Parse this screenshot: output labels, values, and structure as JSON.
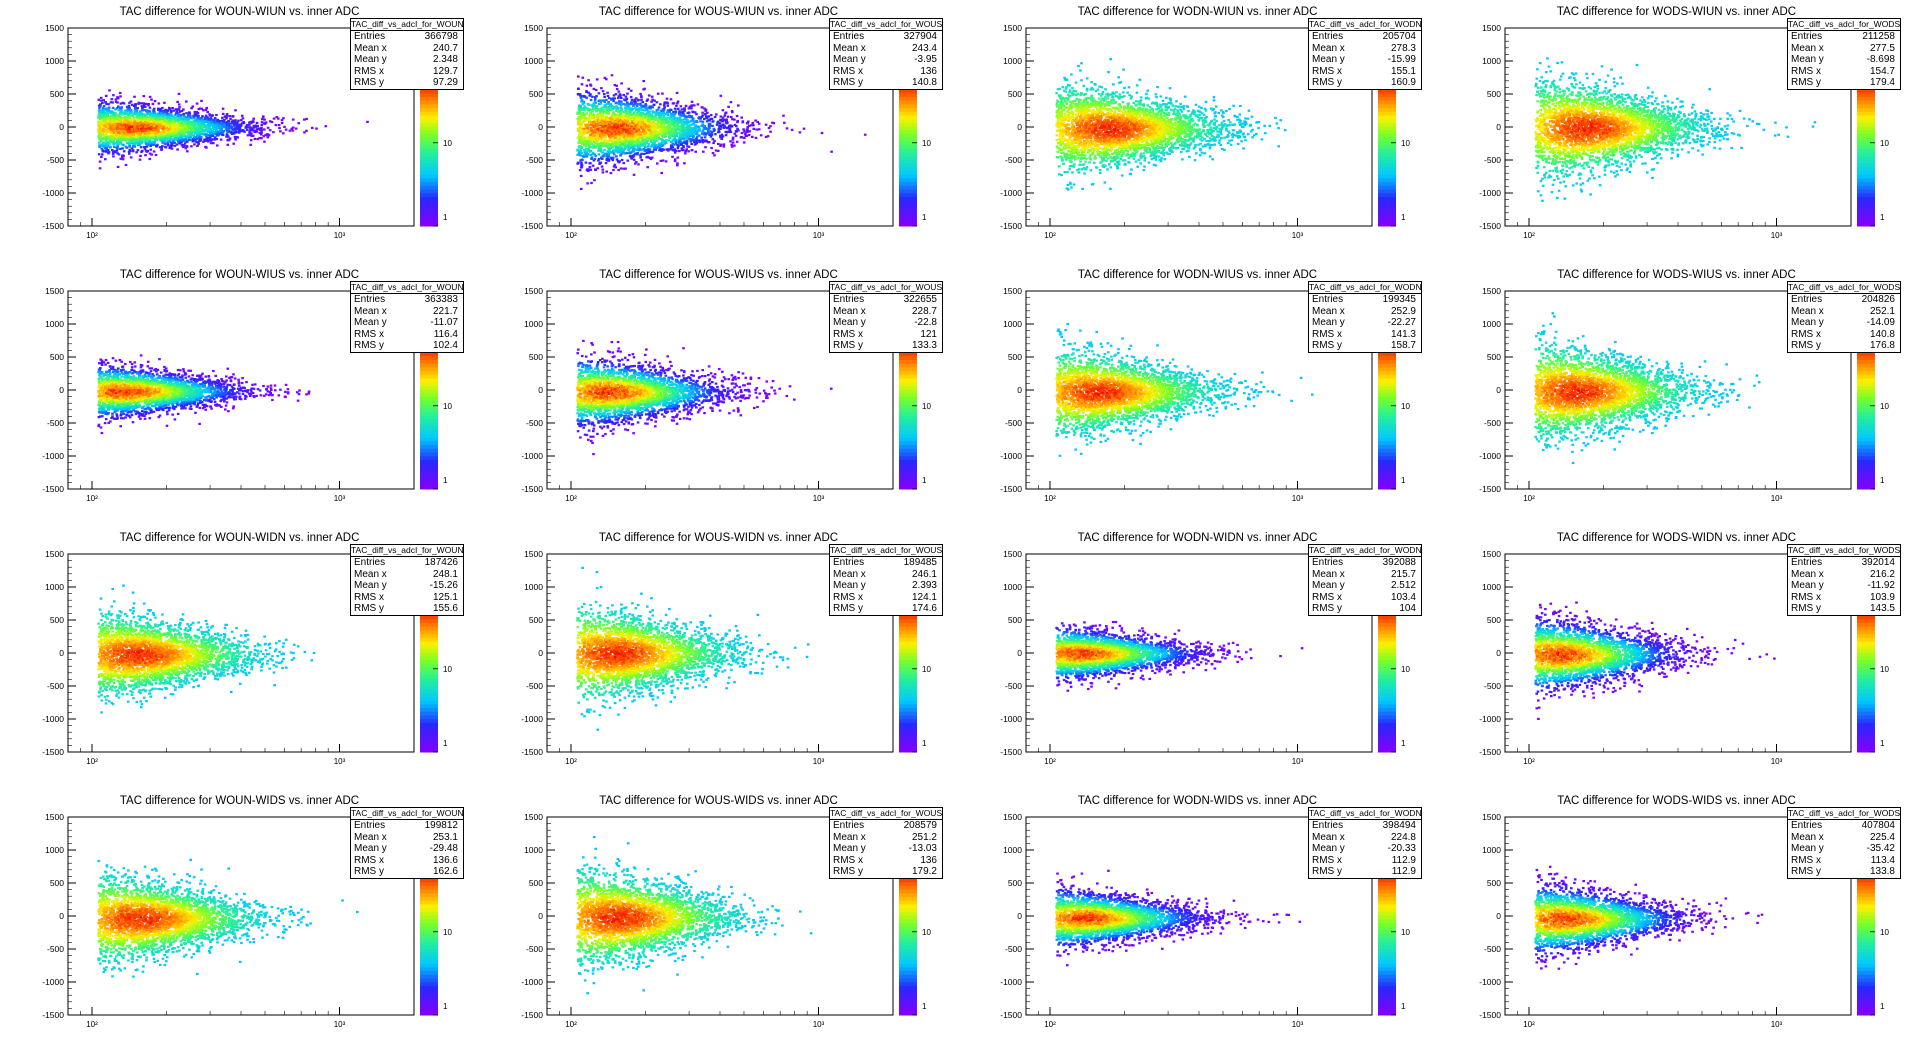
{
  "stat_labels": {
    "entries": "Entries",
    "mean_x": "Mean x",
    "mean_y": "Mean y",
    "rms_x": "RMS x",
    "rms_y": "RMS y"
  },
  "chart_data": [
    {
      "type": "heatmap",
      "title": "TAC difference for WOUN-WIUN vs. inner ADC",
      "stats_name": "TAC_diff_vs_adcI_for_WOUN_WIUN",
      "entries": "366798",
      "mean_x": "240.7",
      "mean_y": "2.348",
      "rms_x": "129.7",
      "rms_y": "97.29",
      "y_ticks": [
        "1500",
        "1000",
        "500",
        "0",
        "-500",
        "-1000",
        "-1500"
      ],
      "x_ticks": [
        "10²",
        "10³"
      ],
      "z_ticks": [
        "10",
        "1"
      ],
      "ylim": [
        -1500,
        1500
      ],
      "xlim": [
        80,
        2000
      ],
      "x_log": true,
      "z_log": true,
      "z_max": "10"
    },
    {
      "type": "heatmap",
      "title": "TAC difference for WOUS-WIUN vs. inner ADC",
      "stats_name": "TAC_diff_vs_adcI_for_WOUS_WIUN",
      "entries": "327904",
      "mean_x": "243.4",
      "mean_y": "-3.95",
      "rms_x": "136",
      "rms_y": "140.8",
      "y_ticks": [
        "1500",
        "1000",
        "500",
        "0",
        "-500",
        "-1000",
        "-1500"
      ],
      "x_ticks": [
        "10²",
        "10³"
      ],
      "z_ticks": [
        "10",
        "1"
      ],
      "ylim": [
        -1500,
        1500
      ],
      "xlim": [
        80,
        2000
      ],
      "x_log": true,
      "z_log": true,
      "z_max": "10"
    },
    {
      "type": "heatmap",
      "title": "TAC difference for WODN-WIUN vs. inner ADC",
      "stats_name": "TAC_diff_vs_adcI_for_WODN_WIUN",
      "entries": "205704",
      "mean_x": "278.3",
      "mean_y": "-15.99",
      "rms_x": "155.1",
      "rms_y": "160.9",
      "y_ticks": [
        "1500",
        "1000",
        "500",
        "0",
        "-500",
        "-1000",
        "-1500"
      ],
      "x_ticks": [
        "10²",
        "10³"
      ],
      "z_ticks": [
        "10",
        "1"
      ],
      "ylim": [
        -1500,
        1500
      ],
      "xlim": [
        80,
        2000
      ],
      "x_log": true,
      "z_log": true,
      "z_max": "10"
    },
    {
      "type": "heatmap",
      "title": "TAC difference for WODS-WIUN vs. inner ADC",
      "stats_name": "TAC_diff_vs_adcI_for_WODS_WIUN",
      "entries": "211258",
      "mean_x": "277.5",
      "mean_y": "-8.698",
      "rms_x": "154.7",
      "rms_y": "179.4",
      "y_ticks": [
        "1500",
        "1000",
        "500",
        "0",
        "-500",
        "-1000",
        "-1500"
      ],
      "x_ticks": [
        "10²",
        "10³"
      ],
      "z_ticks": [
        "10",
        "1"
      ],
      "ylim": [
        -1500,
        1500
      ],
      "xlim": [
        80,
        2000
      ],
      "x_log": true,
      "z_log": true,
      "z_max": "10"
    },
    {
      "type": "heatmap",
      "title": "TAC difference for WOUN-WIUS vs. inner ADC",
      "stats_name": "TAC_diff_vs_adcI_for_WOUN_WIUS",
      "entries": "363383",
      "mean_x": "221.7",
      "mean_y": "-11.07",
      "rms_x": "116.4",
      "rms_y": "102.4",
      "y_ticks": [
        "1500",
        "1000",
        "500",
        "0",
        "-500",
        "-1000",
        "-1500"
      ],
      "x_ticks": [
        "10²",
        "10³"
      ],
      "z_ticks": [
        "10",
        "1"
      ],
      "ylim": [
        -1500,
        1500
      ],
      "xlim": [
        80,
        2000
      ],
      "x_log": true,
      "z_log": true,
      "z_max": "10"
    },
    {
      "type": "heatmap",
      "title": "TAC difference for WOUS-WIUS vs. inner ADC",
      "stats_name": "TAC_diff_vs_adcI_for_WOUS_WIUS",
      "entries": "322655",
      "mean_x": "228.7",
      "mean_y": "-22.8",
      "rms_x": "121",
      "rms_y": "133.3",
      "y_ticks": [
        "1500",
        "1000",
        "500",
        "0",
        "-500",
        "-1000",
        "-1500"
      ],
      "x_ticks": [
        "10²",
        "10³"
      ],
      "z_ticks": [
        "10",
        "1"
      ],
      "ylim": [
        -1500,
        1500
      ],
      "xlim": [
        80,
        2000
      ],
      "x_log": true,
      "z_log": true,
      "z_max": "10"
    },
    {
      "type": "heatmap",
      "title": "TAC difference for WODN-WIUS vs. inner ADC",
      "stats_name": "TAC_diff_vs_adcI_for_WODN_WIUS",
      "entries": "199345",
      "mean_x": "252.9",
      "mean_y": "-22.27",
      "rms_x": "141.3",
      "rms_y": "158.7",
      "y_ticks": [
        "1500",
        "1000",
        "500",
        "0",
        "-500",
        "-1000",
        "-1500"
      ],
      "x_ticks": [
        "10²",
        "10³"
      ],
      "z_ticks": [
        "10",
        "1"
      ],
      "ylim": [
        -1500,
        1500
      ],
      "xlim": [
        80,
        2000
      ],
      "x_log": true,
      "z_log": true,
      "z_max": "10"
    },
    {
      "type": "heatmap",
      "title": "TAC difference for WODS-WIUS vs. inner ADC",
      "stats_name": "TAC_diff_vs_adcI_for_WODS_WIUS",
      "entries": "204826",
      "mean_x": "252.1",
      "mean_y": "-14.09",
      "rms_x": "140.8",
      "rms_y": "176.8",
      "y_ticks": [
        "1500",
        "1000",
        "500",
        "0",
        "-500",
        "-1000",
        "-1500"
      ],
      "x_ticks": [
        "10²",
        "10³"
      ],
      "z_ticks": [
        "10",
        "1"
      ],
      "ylim": [
        -1500,
        1500
      ],
      "xlim": [
        80,
        2000
      ],
      "x_log": true,
      "z_log": true,
      "z_max": "10"
    },
    {
      "type": "heatmap",
      "title": "TAC difference for WOUN-WIDN vs. inner ADC",
      "stats_name": "TAC_diff_vs_adcI_for_WOUN_WIDN",
      "entries": "187426",
      "mean_x": "248.1",
      "mean_y": "-15.26",
      "rms_x": "125.1",
      "rms_y": "155.6",
      "y_ticks": [
        "1500",
        "1000",
        "500",
        "0",
        "-500",
        "-1000",
        "-1500"
      ],
      "x_ticks": [
        "10²",
        "10³"
      ],
      "z_ticks": [
        "10",
        "1"
      ],
      "ylim": [
        -1500,
        1500
      ],
      "xlim": [
        80,
        2000
      ],
      "x_log": true,
      "z_log": true,
      "z_max": "10"
    },
    {
      "type": "heatmap",
      "title": "TAC difference for WOUS-WIDN vs. inner ADC",
      "stats_name": "TAC_diff_vs_adcI_for_WOUS_WIDN",
      "entries": "189485",
      "mean_x": "246.1",
      "mean_y": "2.393",
      "rms_x": "124.1",
      "rms_y": "174.6",
      "y_ticks": [
        "1500",
        "1000",
        "500",
        "0",
        "-500",
        "-1000",
        "-1500"
      ],
      "x_ticks": [
        "10²",
        "10³"
      ],
      "z_ticks": [
        "10",
        "1"
      ],
      "ylim": [
        -1500,
        1500
      ],
      "xlim": [
        80,
        2000
      ],
      "x_log": true,
      "z_log": true,
      "z_max": "10"
    },
    {
      "type": "heatmap",
      "title": "TAC difference for WODN-WIDN vs. inner ADC",
      "stats_name": "TAC_diff_vs_adcI_for_WODN_WIDN",
      "entries": "392088",
      "mean_x": "215.7",
      "mean_y": "2.512",
      "rms_x": "103.4",
      "rms_y": "104",
      "y_ticks": [
        "1500",
        "1000",
        "500",
        "0",
        "-500",
        "-1000",
        "-1500"
      ],
      "x_ticks": [
        "10²",
        "10³"
      ],
      "z_ticks": [
        "10",
        "1"
      ],
      "ylim": [
        -1500,
        1500
      ],
      "xlim": [
        80,
        2000
      ],
      "x_log": true,
      "z_log": true,
      "z_max": "10"
    },
    {
      "type": "heatmap",
      "title": "TAC difference for WODS-WIDN vs. inner ADC",
      "stats_name": "TAC_diff_vs_adcI_for_WODS_WIDN",
      "entries": "392014",
      "mean_x": "216.2",
      "mean_y": "-11.92",
      "rms_x": "103.9",
      "rms_y": "143.5",
      "y_ticks": [
        "1500",
        "1000",
        "500",
        "0",
        "-500",
        "-1000",
        "-1500"
      ],
      "x_ticks": [
        "10²",
        "10³"
      ],
      "z_ticks": [
        "10",
        "1"
      ],
      "ylim": [
        -1500,
        1500
      ],
      "xlim": [
        80,
        2000
      ],
      "x_log": true,
      "z_log": true,
      "z_max": "10"
    },
    {
      "type": "heatmap",
      "title": "TAC difference for WOUN-WIDS vs. inner ADC",
      "stats_name": "TAC_diff_vs_adcI_for_WOUN_WIDS",
      "entries": "199812",
      "mean_x": "253.1",
      "mean_y": "-29.48",
      "rms_x": "136.6",
      "rms_y": "162.6",
      "y_ticks": [
        "1500",
        "1000",
        "500",
        "0",
        "-500",
        "-1000",
        "-1500"
      ],
      "x_ticks": [
        "10²",
        "10³"
      ],
      "z_ticks": [
        "10",
        "1"
      ],
      "ylim": [
        -1500,
        1500
      ],
      "xlim": [
        80,
        2000
      ],
      "x_log": true,
      "z_log": true,
      "z_max": "10"
    },
    {
      "type": "heatmap",
      "title": "TAC difference for WOUS-WIDS vs. inner ADC",
      "stats_name": "TAC_diff_vs_adcI_for_WOUS_WIDS",
      "entries": "208579",
      "mean_x": "251.2",
      "mean_y": "-13.03",
      "rms_x": "136",
      "rms_y": "179.2",
      "y_ticks": [
        "1500",
        "1000",
        "500",
        "0",
        "-500",
        "-1000",
        "-1500"
      ],
      "x_ticks": [
        "10²",
        "10³"
      ],
      "z_ticks": [
        "10",
        "1"
      ],
      "ylim": [
        -1500,
        1500
      ],
      "xlim": [
        80,
        2000
      ],
      "x_log": true,
      "z_log": true,
      "z_max": "10"
    },
    {
      "type": "heatmap",
      "title": "TAC difference for WODN-WIDS vs. inner ADC",
      "stats_name": "TAC_diff_vs_adcI_for_WODN_WIDS",
      "entries": "398494",
      "mean_x": "224.8",
      "mean_y": "-20.33",
      "rms_x": "112.9",
      "rms_y": "112.9",
      "y_ticks": [
        "1500",
        "1000",
        "500",
        "0",
        "-500",
        "-1000",
        "-1500"
      ],
      "x_ticks": [
        "10²",
        "10³"
      ],
      "z_ticks": [
        "10",
        "1"
      ],
      "ylim": [
        -1500,
        1500
      ],
      "xlim": [
        80,
        2000
      ],
      "x_log": true,
      "z_log": true,
      "z_max": "10"
    },
    {
      "type": "heatmap",
      "title": "TAC difference for WODS-WIDS vs. inner ADC",
      "stats_name": "TAC_diff_vs_adcI_for_WODS_WIDS",
      "entries": "407804",
      "mean_x": "225.4",
      "mean_y": "-35.42",
      "rms_x": "113.4",
      "rms_y": "133.8",
      "y_ticks": [
        "1500",
        "1000",
        "500",
        "0",
        "-500",
        "-1000",
        "-1500"
      ],
      "x_ticks": [
        "10²",
        "10³"
      ],
      "z_ticks": [
        "10",
        "1"
      ],
      "ylim": [
        -1500,
        1500
      ],
      "xlim": [
        80,
        2000
      ],
      "x_log": true,
      "z_log": true,
      "z_max": "10"
    }
  ]
}
